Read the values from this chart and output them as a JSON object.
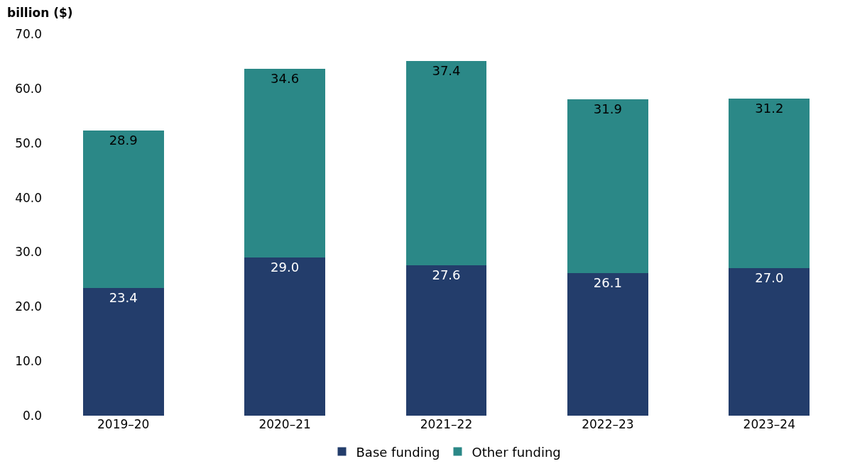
{
  "chart_data": {
    "type": "bar",
    "stacked": true,
    "ylabel": "billion ($)",
    "categories": [
      "2019–20",
      "2020–21",
      "2021–22",
      "2022–23",
      "2023–24"
    ],
    "series": [
      {
        "name": "Base funding",
        "color": "#233d6b",
        "values": [
          23.4,
          29.0,
          27.6,
          26.1,
          27.0
        ],
        "value_labels": [
          "23.4",
          "29.0",
          "27.6",
          "26.1",
          "27.0"
        ]
      },
      {
        "name": "Other funding",
        "color": "#2b8887",
        "values": [
          28.9,
          34.6,
          37.4,
          31.9,
          31.2
        ],
        "value_labels": [
          "28.9",
          "34.6",
          "37.4",
          "31.9",
          "31.2"
        ]
      }
    ],
    "ylim": [
      0,
      70
    ],
    "yticks": [
      {
        "value": 0,
        "label": "0.0"
      },
      {
        "value": 10,
        "label": "10.0"
      },
      {
        "value": 20,
        "label": "20.0"
      },
      {
        "value": 30,
        "label": "30.0"
      },
      {
        "value": 40,
        "label": "40.0"
      },
      {
        "value": 50,
        "label": "50.0"
      },
      {
        "value": 60,
        "label": "60.0"
      },
      {
        "value": 70,
        "label": "70.0"
      }
    ],
    "grid": false,
    "legend": "bottom"
  }
}
